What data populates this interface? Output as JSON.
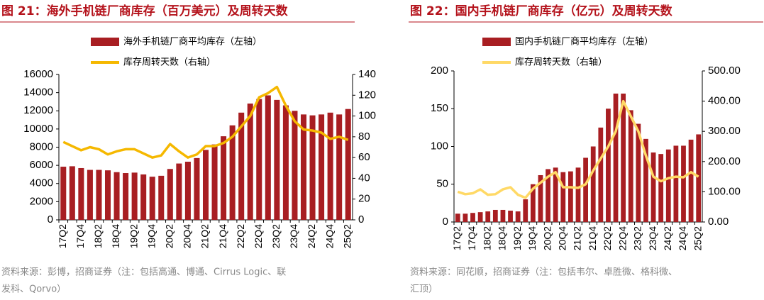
{
  "chart_data": [
    {
      "type": "combo",
      "title": "图 21：海外手机链厂商库存（百万美元）及周转天数",
      "source": [
        "资料来源：彭博，招商证券（注：包括高通、博通、Cirrus Logic、联",
        "发科、Qorvo）"
      ],
      "categories": [
        "17Q2",
        null,
        "17Q4",
        null,
        "18Q2",
        null,
        "18Q4",
        null,
        "19Q2",
        null,
        "19Q4",
        null,
        "20Q2",
        null,
        "20Q4",
        null,
        "21Q2",
        null,
        "21Q4",
        null,
        "22Q2",
        null,
        "22Q4",
        null,
        "23Q2",
        null,
        "23Q4",
        null,
        "24Q2",
        null,
        "24Q4",
        null,
        "25Q2"
      ],
      "series": [
        {
          "name": "海外手机链厂商平均库存（左轴）",
          "type": "bar",
          "axis": "y",
          "color": "#a81e22",
          "values": [
            5850,
            5900,
            5700,
            5500,
            5500,
            5450,
            5250,
            5150,
            5200,
            5000,
            4750,
            4850,
            5600,
            6200,
            6400,
            6800,
            7700,
            8300,
            9200,
            10400,
            11800,
            12800,
            13300,
            13700,
            13200,
            12600,
            12000,
            11600,
            11500,
            11600,
            11800,
            11600,
            12200
          ]
        },
        {
          "name": "库存周转天数（右轴）",
          "type": "line",
          "axis": "y2",
          "color": "#f5b800",
          "values": [
            75,
            71,
            67,
            70,
            68,
            63,
            66,
            68,
            68,
            64,
            60,
            62,
            73,
            66,
            60,
            63,
            71,
            71,
            74,
            80,
            90,
            100,
            118,
            122,
            128,
            110,
            95,
            87,
            86,
            84,
            78,
            80,
            77
          ]
        }
      ],
      "ylim": [
        0,
        16000
      ],
      "yticks": [
        0,
        2000,
        4000,
        6000,
        8000,
        10000,
        12000,
        14000,
        16000
      ],
      "y2lim": [
        0,
        140
      ],
      "y2ticks": [
        0,
        20,
        40,
        60,
        80,
        100,
        120,
        140
      ]
    },
    {
      "type": "combo",
      "title": "图 22：国内手机链厂商库存（亿元）及周转天数",
      "source": [
        "资料来源：同花顺，招商证券（注：包括韦尔、卓胜微、格科微、",
        "汇顶）"
      ],
      "categories": [
        "17Q2",
        null,
        "17Q4",
        null,
        "18Q2",
        null,
        "18Q4",
        null,
        "19Q2",
        null,
        "19Q4",
        null,
        "20Q2",
        null,
        "20Q4",
        null,
        "21Q2",
        null,
        "21Q4",
        null,
        "22Q2",
        null,
        "22Q4",
        null,
        "23Q2",
        null,
        "23Q4",
        null,
        "24Q2",
        null,
        "24Q4",
        null,
        "25Q2"
      ],
      "series": [
        {
          "name": "国内手机链厂商平均库存（左轴）",
          "type": "bar",
          "axis": "y",
          "color": "#a81e22",
          "values": [
            11,
            11,
            12,
            13,
            14,
            16,
            16,
            15,
            14,
            30,
            50,
            62,
            70,
            72,
            66,
            67,
            72,
            85,
            100,
            125,
            150,
            170,
            170,
            148,
            130,
            110,
            92,
            90,
            96,
            101,
            101,
            109,
            116
          ]
        },
        {
          "name": "库存周转天数（右轴）",
          "type": "line",
          "axis": "y2",
          "color": "#ffd966",
          "values": [
            100,
            92,
            95,
            108,
            90,
            92,
            108,
            115,
            90,
            80,
            110,
            130,
            150,
            165,
            115,
            115,
            113,
            125,
            170,
            210,
            250,
            300,
            400,
            350,
            300,
            220,
            150,
            135,
            145,
            150,
            148,
            165,
            150
          ]
        }
      ],
      "ylim": [
        0,
        200
      ],
      "yticks": [
        0,
        50,
        100,
        150,
        200
      ],
      "y2lim": [
        0,
        500
      ],
      "y2ticks": [
        {
          "value": 0,
          "label": "0.00"
        },
        {
          "value": 100,
          "label": "100.00"
        },
        {
          "value": 200,
          "label": "200.00"
        },
        {
          "value": 300,
          "label": "300.00"
        },
        {
          "value": 400,
          "label": "400.00"
        },
        {
          "value": 500,
          "label": "500.00"
        }
      ]
    }
  ]
}
